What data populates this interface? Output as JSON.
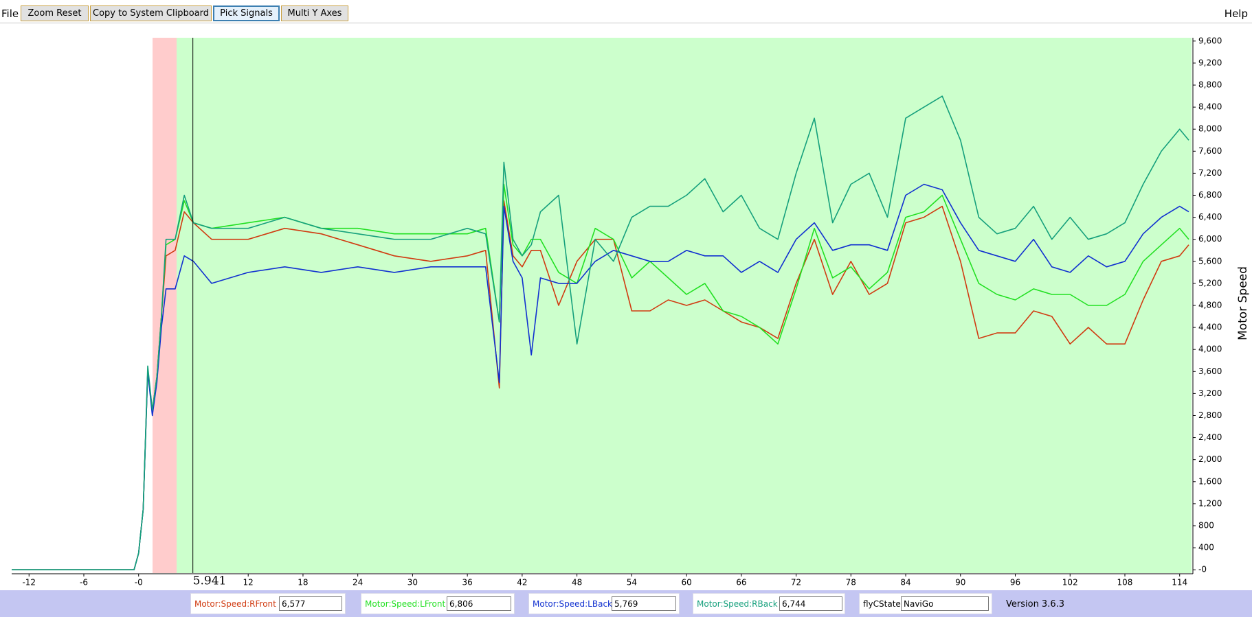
{
  "menu": {
    "file": "File",
    "help": "Help"
  },
  "toolbar": {
    "buttons": [
      "Zoom Reset",
      "Copy to System Clipboard",
      "Pick Signals",
      "Multi Y Axes"
    ]
  },
  "chart_data": {
    "type": "line",
    "y_label": "Motor Speed",
    "cursor": {
      "value": 5.941,
      "label": "5.941"
    },
    "xlim": [
      -13.9,
      115.3
    ],
    "xticks": [
      -12,
      -6,
      {
        "value": 0,
        "label": "-0"
      },
      12,
      18,
      24,
      30,
      36,
      42,
      48,
      54,
      60,
      66,
      72,
      78,
      84,
      90,
      96,
      102,
      108,
      114
    ],
    "ylim": [
      -60,
      9660
    ],
    "yticks": [
      {
        "value": 0,
        "label": "-0"
      },
      400,
      800,
      {
        "value": 1200,
        "label": "1,200"
      },
      {
        "value": 1600,
        "label": "1,600"
      },
      {
        "value": 2000,
        "label": "2,000"
      },
      {
        "value": 2400,
        "label": "2,400"
      },
      {
        "value": 2800,
        "label": "2,800"
      },
      {
        "value": 3200,
        "label": "3,200"
      },
      {
        "value": 3600,
        "label": "3,600"
      },
      {
        "value": 4000,
        "label": "4,000"
      },
      {
        "value": 4400,
        "label": "4,400"
      },
      {
        "value": 4800,
        "label": "4,800"
      },
      {
        "value": 5200,
        "label": "5,200"
      },
      {
        "value": 5600,
        "label": "5,600"
      },
      {
        "value": 6000,
        "label": "6,000"
      },
      {
        "value": 6400,
        "label": "6,400"
      },
      {
        "value": 6800,
        "label": "6,800"
      },
      {
        "value": 7200,
        "label": "7,200"
      },
      {
        "value": 7600,
        "label": "7,600"
      },
      {
        "value": 8000,
        "label": "8,000"
      },
      {
        "value": 8400,
        "label": "8,400"
      },
      {
        "value": 8800,
        "label": "8,800"
      },
      {
        "value": 9200,
        "label": "9,200"
      },
      {
        "value": 9600,
        "label": "9,600"
      }
    ],
    "grid": false,
    "x": [
      -13.9,
      -0.5,
      0,
      0.5,
      1,
      1.5,
      2,
      2.5,
      3,
      4,
      5,
      6,
      8,
      12,
      16,
      20,
      24,
      28,
      32,
      36,
      38,
      39.5,
      40,
      41,
      42,
      43,
      44,
      46,
      48,
      50,
      52,
      54,
      56,
      58,
      60,
      62,
      64,
      66,
      68,
      70,
      72,
      74,
      76,
      78,
      80,
      82,
      84,
      86,
      88,
      90,
      92,
      94,
      96,
      98,
      100,
      102,
      104,
      106,
      108,
      110,
      112,
      114,
      115
    ],
    "series": [
      {
        "name": "Motor:Speed:RFront",
        "color": "#d03a10",
        "values": [
          0,
          0,
          300,
          1100,
          3600,
          2900,
          3500,
          4600,
          5700,
          5800,
          6500,
          6300,
          6000,
          6000,
          6200,
          6100,
          5900,
          5700,
          5600,
          5700,
          5800,
          3300,
          6700,
          5700,
          5500,
          5800,
          5800,
          4800,
          5600,
          6000,
          6000,
          4700,
          4700,
          4900,
          4800,
          4900,
          4700,
          4500,
          4400,
          4200,
          5200,
          6000,
          5000,
          5600,
          5000,
          5200,
          6300,
          6400,
          6600,
          5600,
          4200,
          4300,
          4300,
          4700,
          4600,
          4100,
          4400,
          4100,
          4100,
          4900,
          5600,
          5700,
          5900
        ]
      },
      {
        "name": "Motor:Speed:LFront",
        "color": "#22e022",
        "values": [
          0,
          0,
          300,
          1100,
          3600,
          2900,
          3500,
          4600,
          5900,
          6000,
          6700,
          6300,
          6200,
          6300,
          6400,
          6200,
          6200,
          6100,
          6100,
          6100,
          6200,
          4500,
          7000,
          5900,
          5700,
          6000,
          6000,
          5400,
          5200,
          6200,
          6000,
          5300,
          5600,
          5300,
          5000,
          5200,
          4700,
          4600,
          4400,
          4100,
          5100,
          6200,
          5300,
          5500,
          5100,
          5400,
          6400,
          6500,
          6800,
          6000,
          5200,
          5000,
          4900,
          5100,
          5000,
          5000,
          4800,
          4800,
          5000,
          5600,
          5900,
          6200,
          6000
        ]
      },
      {
        "name": "Motor:Speed:LBack",
        "color": "#1030d0",
        "values": [
          0,
          0,
          300,
          1100,
          3600,
          2800,
          3400,
          4400,
          5100,
          5100,
          5700,
          5600,
          5200,
          5400,
          5500,
          5400,
          5500,
          5400,
          5500,
          5500,
          5500,
          3400,
          6600,
          5600,
          5300,
          3900,
          5300,
          5200,
          5200,
          5600,
          5800,
          5700,
          5600,
          5600,
          5800,
          5700,
          5700,
          5400,
          5600,
          5400,
          6000,
          6300,
          5800,
          5900,
          5900,
          5800,
          6800,
          7000,
          6900,
          6300,
          5800,
          5700,
          5600,
          6000,
          5500,
          5400,
          5700,
          5500,
          5600,
          6100,
          6400,
          6600,
          6500
        ]
      },
      {
        "name": "Motor:Speed:RBack",
        "color": "#15a07c",
        "values": [
          0,
          0,
          300,
          1100,
          3700,
          2900,
          3500,
          4600,
          6000,
          6000,
          6800,
          6300,
          6200,
          6200,
          6400,
          6200,
          6100,
          6000,
          6000,
          6200,
          6100,
          4500,
          7400,
          6000,
          5700,
          5900,
          6500,
          6800,
          4100,
          6000,
          5600,
          6400,
          6600,
          6600,
          6800,
          7100,
          6500,
          6800,
          6200,
          6000,
          7200,
          8200,
          6300,
          7000,
          7200,
          6400,
          8200,
          8400,
          8600,
          7800,
          6400,
          6100,
          6200,
          6600,
          6000,
          6400,
          6000,
          6100,
          6300,
          7000,
          7600,
          8000,
          7800
        ]
      }
    ]
  },
  "status_bar": {
    "readouts": [
      "6,577",
      "6,806",
      "5,769",
      "6,744"
    ],
    "state_label": "flyCState",
    "state_value": "NaviGo",
    "version": "Version 3.6.3"
  }
}
